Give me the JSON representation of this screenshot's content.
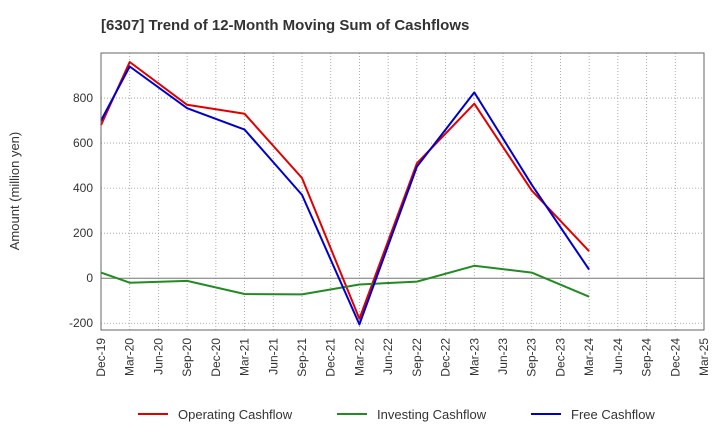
{
  "chart_data": {
    "type": "line",
    "title": "[6307]  Trend of 12-Month Moving Sum of Cashflows",
    "ylabel": "Amount (million yen)",
    "xlabel": "",
    "categories": [
      "Dec-19",
      "Mar-20",
      "Jun-20",
      "Sep-20",
      "Dec-20",
      "Mar-21",
      "Jun-21",
      "Sep-21",
      "Dec-21",
      "Mar-22",
      "Jun-22",
      "Sep-22",
      "Dec-22",
      "Mar-23",
      "Jun-23",
      "Sep-23",
      "Dec-23",
      "Mar-24",
      "Jun-24",
      "Sep-24",
      "Dec-24",
      "Mar-25"
    ],
    "yticks": [
      -200,
      0,
      200,
      400,
      600,
      800
    ],
    "ylim": [
      -230,
      1000
    ],
    "grid": true,
    "legend_position": "bottom",
    "series": [
      {
        "name": "Operating Cashflow",
        "color": "#e00000",
        "values": [
          680,
          960,
          null,
          770,
          null,
          730,
          null,
          445,
          null,
          -180,
          null,
          510,
          null,
          775,
          null,
          390,
          null,
          120,
          null,
          null,
          null,
          null
        ]
      },
      {
        "name": "Investing Cashflow",
        "color": "#228b22",
        "values": [
          25,
          -20,
          null,
          -12,
          null,
          -70,
          null,
          -72,
          null,
          -28,
          null,
          -15,
          null,
          55,
          null,
          25,
          null,
          -82,
          null,
          null,
          null,
          null
        ]
      },
      {
        "name": "Free Cashflow",
        "color": "#0000cc",
        "values": [
          700,
          940,
          null,
          755,
          null,
          660,
          null,
          370,
          null,
          -205,
          null,
          495,
          null,
          825,
          null,
          415,
          null,
          38,
          null,
          null,
          null,
          null
        ]
      }
    ]
  }
}
